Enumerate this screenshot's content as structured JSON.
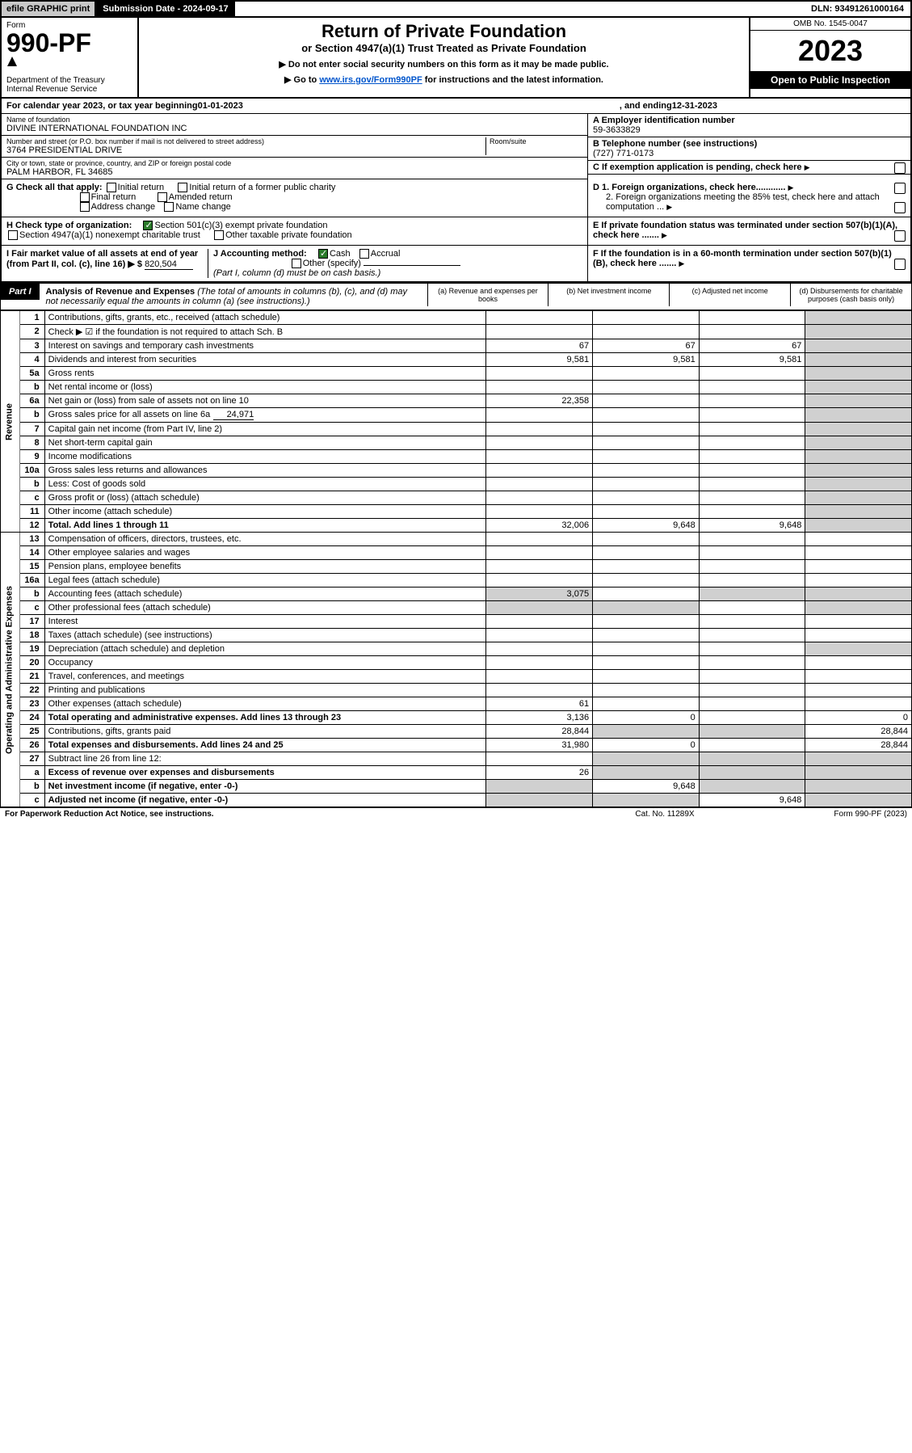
{
  "topbar": {
    "efile": "efile GRAPHIC print",
    "subdate_label": "Submission Date - 2024-09-17",
    "dln": "DLN: 93491261000164"
  },
  "header": {
    "form_label": "Form",
    "form_num": "990-PF",
    "dept": "Department of the Treasury\nInternal Revenue Service",
    "title": "Return of Private Foundation",
    "subtitle": "or Section 4947(a)(1) Trust Treated as Private Foundation",
    "instr1": "▶ Do not enter social security numbers on this form as it may be made public.",
    "instr2_pre": "▶ Go to ",
    "instr2_link": "www.irs.gov/Form990PF",
    "instr2_post": " for instructions and the latest information.",
    "omb": "OMB No. 1545-0047",
    "year": "2023",
    "open": "Open to Public Inspection"
  },
  "calrow": {
    "pre": "For calendar year 2023, or tax year beginning ",
    "begin": "01-01-2023",
    "mid": ", and ending ",
    "end": "12-31-2023"
  },
  "info": {
    "name_label": "Name of foundation",
    "name": "DIVINE INTERNATIONAL FOUNDATION INC",
    "addr_label": "Number and street (or P.O. box number if mail is not delivered to street address)",
    "addr": "3764 PRESIDENTIAL DRIVE",
    "room_label": "Room/suite",
    "city_label": "City or town, state or province, country, and ZIP or foreign postal code",
    "city": "PALM HARBOR, FL  34685",
    "ein_label": "A Employer identification number",
    "ein": "59-3633829",
    "tel_label": "B Telephone number (see instructions)",
    "tel": "(727) 771-0173",
    "c_label": "C If exemption application is pending, check here"
  },
  "checks": {
    "g_label": "G Check all that apply:",
    "g_opts": [
      "Initial return",
      "Initial return of a former public charity",
      "Final return",
      "Amended return",
      "Address change",
      "Name change"
    ],
    "h_label": "H Check type of organization:",
    "h_opt1": "Section 501(c)(3) exempt private foundation",
    "h_opt2": "Section 4947(a)(1) nonexempt charitable trust",
    "h_opt3": "Other taxable private foundation",
    "i_label": "I Fair market value of all assets at end of year (from Part II, col. (c), line 16) ▶ $",
    "i_value": "820,504",
    "j_label": "J Accounting method:",
    "j_cash": "Cash",
    "j_accrual": "Accrual",
    "j_other": "Other (specify)",
    "j_note": "(Part I, column (d) must be on cash basis.)",
    "d1": "D 1. Foreign organizations, check here............",
    "d2": "2. Foreign organizations meeting the 85% test, check here and attach computation ...",
    "e": "E If private foundation status was terminated under section 507(b)(1)(A), check here .......",
    "f": "F If the foundation is in a 60-month termination under section 507(b)(1)(B), check here ......."
  },
  "part1": {
    "label": "Part I",
    "title_bold": "Analysis of Revenue and Expenses",
    "title_rest": " (The total of amounts in columns (b), (c), and (d) may not necessarily equal the amounts in column (a) (see instructions).)",
    "col_a": "(a) Revenue and expenses per books",
    "col_b": "(b) Net investment income",
    "col_c": "(c) Adjusted net income",
    "col_d": "(d) Disbursements for charitable purposes (cash basis only)",
    "side_rev": "Revenue",
    "side_exp": "Operating and Administrative Expenses",
    "rows": [
      {
        "n": "1",
        "d": "Contributions, gifts, grants, etc., received (attach schedule)"
      },
      {
        "n": "2",
        "d": "Check ▶ ☑ if the foundation is not required to attach Sch. B"
      },
      {
        "n": "3",
        "d": "Interest on savings and temporary cash investments",
        "a": "67",
        "b": "67",
        "c": "67"
      },
      {
        "n": "4",
        "d": "Dividends and interest from securities",
        "a": "9,581",
        "b": "9,581",
        "c": "9,581"
      },
      {
        "n": "5a",
        "d": "Gross rents"
      },
      {
        "n": "b",
        "d": "Net rental income or (loss)"
      },
      {
        "n": "6a",
        "d": "Net gain or (loss) from sale of assets not on line 10",
        "a": "22,358"
      },
      {
        "n": "b",
        "d": "Gross sales price for all assets on line 6a",
        "inline": "24,971"
      },
      {
        "n": "7",
        "d": "Capital gain net income (from Part IV, line 2)"
      },
      {
        "n": "8",
        "d": "Net short-term capital gain"
      },
      {
        "n": "9",
        "d": "Income modifications"
      },
      {
        "n": "10a",
        "d": "Gross sales less returns and allowances"
      },
      {
        "n": "b",
        "d": "Less: Cost of goods sold"
      },
      {
        "n": "c",
        "d": "Gross profit or (loss) (attach schedule)"
      },
      {
        "n": "11",
        "d": "Other income (attach schedule)"
      },
      {
        "n": "12",
        "d": "Total. Add lines 1 through 11",
        "bold": true,
        "a": "32,006",
        "b": "9,648",
        "c": "9,648"
      }
    ],
    "exp_rows": [
      {
        "n": "13",
        "d": "Compensation of officers, directors, trustees, etc."
      },
      {
        "n": "14",
        "d": "Other employee salaries and wages"
      },
      {
        "n": "15",
        "d": "Pension plans, employee benefits"
      },
      {
        "n": "16a",
        "d": "Legal fees (attach schedule)"
      },
      {
        "n": "b",
        "d": "Accounting fees (attach schedule)",
        "a": "3,075"
      },
      {
        "n": "c",
        "d": "Other professional fees (attach schedule)"
      },
      {
        "n": "17",
        "d": "Interest"
      },
      {
        "n": "18",
        "d": "Taxes (attach schedule) (see instructions)"
      },
      {
        "n": "19",
        "d": "Depreciation (attach schedule) and depletion"
      },
      {
        "n": "20",
        "d": "Occupancy"
      },
      {
        "n": "21",
        "d": "Travel, conferences, and meetings"
      },
      {
        "n": "22",
        "d": "Printing and publications"
      },
      {
        "n": "23",
        "d": "Other expenses (attach schedule)",
        "a": "61"
      },
      {
        "n": "24",
        "d": "Total operating and administrative expenses. Add lines 13 through 23",
        "bold": true,
        "a": "3,136",
        "b": "0",
        "dcol": "0"
      },
      {
        "n": "25",
        "d": "Contributions, gifts, grants paid",
        "a": "28,844",
        "dcol": "28,844"
      },
      {
        "n": "26",
        "d": "Total expenses and disbursements. Add lines 24 and 25",
        "bold": true,
        "a": "31,980",
        "b": "0",
        "dcol": "28,844"
      },
      {
        "n": "27",
        "d": "Subtract line 26 from line 12:"
      },
      {
        "n": "a",
        "d": "Excess of revenue over expenses and disbursements",
        "bold": true,
        "a": "26"
      },
      {
        "n": "b",
        "d": "Net investment income (if negative, enter -0-)",
        "bold": true,
        "b": "9,648"
      },
      {
        "n": "c",
        "d": "Adjusted net income (if negative, enter -0-)",
        "bold": true,
        "c": "9,648"
      }
    ]
  },
  "footer": {
    "left": "For Paperwork Reduction Act Notice, see instructions.",
    "mid": "Cat. No. 11289X",
    "right": "Form 990-PF (2023)"
  },
  "colors": {
    "black": "#000000",
    "grey_bg": "#d0d0d0",
    "link": "#0055cc",
    "check_green": "#2a7a2a"
  }
}
